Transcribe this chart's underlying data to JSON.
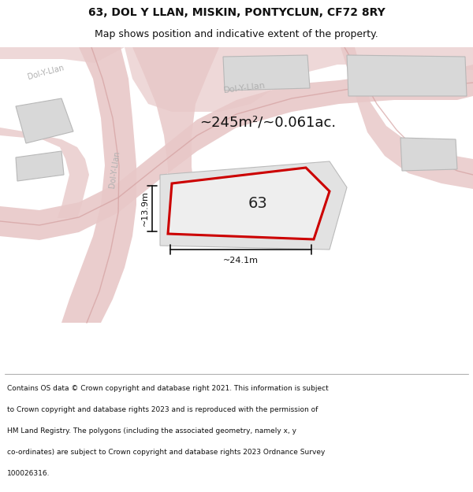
{
  "title_line1": "63, DOL Y LLAN, MISKIN, PONTYCLUN, CF72 8RY",
  "title_line2": "Map shows position and indicative extent of the property.",
  "area_label": "~245m²/~0.061ac.",
  "width_label": "~24.1m",
  "height_label": "~13.9m",
  "plot_number": "63",
  "map_bg": "#f0efed",
  "road_color": "#e8c8c8",
  "road_line_color": "#d4a0a0",
  "building_fill": "#d8d8d8",
  "building_edge": "#b8b8b8",
  "highlight_fill": "#eeeeee",
  "highlight_edge": "#cc0000",
  "lot_fill": "#e2e2e2",
  "lot_edge": "#bbbbbb",
  "road_text_color": "#b0b0b0",
  "dim_color": "#111111",
  "title_color": "#111111",
  "footer_color": "#111111",
  "footer_lines": [
    "Contains OS data © Crown copyright and database right 2021. This information is subject",
    "to Crown copyright and database rights 2023 and is reproduced with the permission of",
    "HM Land Registry. The polygons (including the associated geometry, namely x, y",
    "co-ordinates) are subject to Crown copyright and database rights 2023 Ordnance Survey",
    "100026316."
  ]
}
